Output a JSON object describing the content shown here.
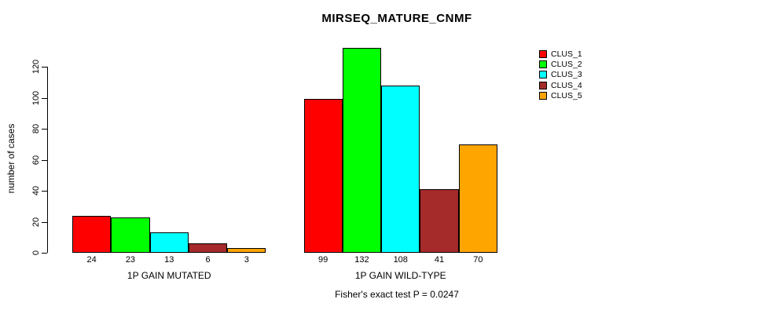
{
  "title": "MIRSEQ_MATURE_CNMF",
  "footer": "Fisher's exact test P = 0.0247",
  "chart_data": {
    "type": "bar",
    "title": "MIRSEQ_MATURE_CNMF",
    "xlabel": "",
    "ylabel": "number of cases",
    "groups": [
      "1P GAIN MUTATED",
      "1P GAIN WILD-TYPE"
    ],
    "series": [
      {
        "name": "CLUS_1",
        "color": "#FF0000",
        "values": [
          24,
          99
        ]
      },
      {
        "name": "CLUS_2",
        "color": "#00FF00",
        "values": [
          23,
          132
        ]
      },
      {
        "name": "CLUS_3",
        "color": "#00FFFF",
        "values": [
          13,
          108
        ]
      },
      {
        "name": "CLUS_4",
        "color": "#A52A2A",
        "values": [
          6,
          41
        ]
      },
      {
        "name": "CLUS_5",
        "color": "#FFA500",
        "values": [
          3,
          70
        ]
      }
    ],
    "bar_value_labels": [
      [
        "24",
        "23",
        "13",
        "6",
        "3"
      ],
      [
        "99",
        "132",
        "108",
        "41",
        "70"
      ]
    ],
    "yticks": [
      0,
      20,
      40,
      60,
      80,
      100,
      120
    ],
    "ylim": [
      0,
      132
    ],
    "grid": false,
    "legend_position": "top-right",
    "annotation": "Fisher's exact test P = 0.0247"
  }
}
